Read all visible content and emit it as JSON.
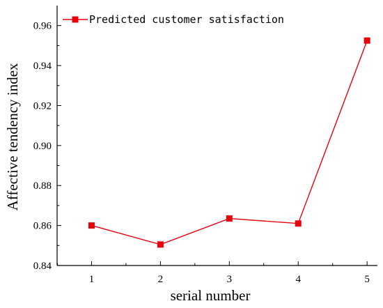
{
  "chart_data": {
    "type": "line",
    "xlabel": "serial number",
    "ylabel": "Affective tendency index",
    "x": [
      1,
      2,
      3,
      4,
      5
    ],
    "x_ticks": [
      1,
      2,
      3,
      4,
      5
    ],
    "xlim": [
      0.5,
      5.15
    ],
    "ylim": [
      0.84,
      0.97
    ],
    "y_ticks": [
      0.84,
      0.86,
      0.88,
      0.9,
      0.92,
      0.94,
      0.96
    ],
    "y_tick_labels": [
      "0.84",
      "0.86",
      "0.88",
      "0.90",
      "0.92",
      "0.94",
      "0.96"
    ],
    "series": [
      {
        "name": "Predicted customer satisfaction",
        "values": [
          0.86,
          0.8505,
          0.8635,
          0.861,
          0.9525
        ],
        "color": "#e8000b",
        "marker": "square"
      }
    ],
    "legend": "top-left",
    "grid": false
  }
}
